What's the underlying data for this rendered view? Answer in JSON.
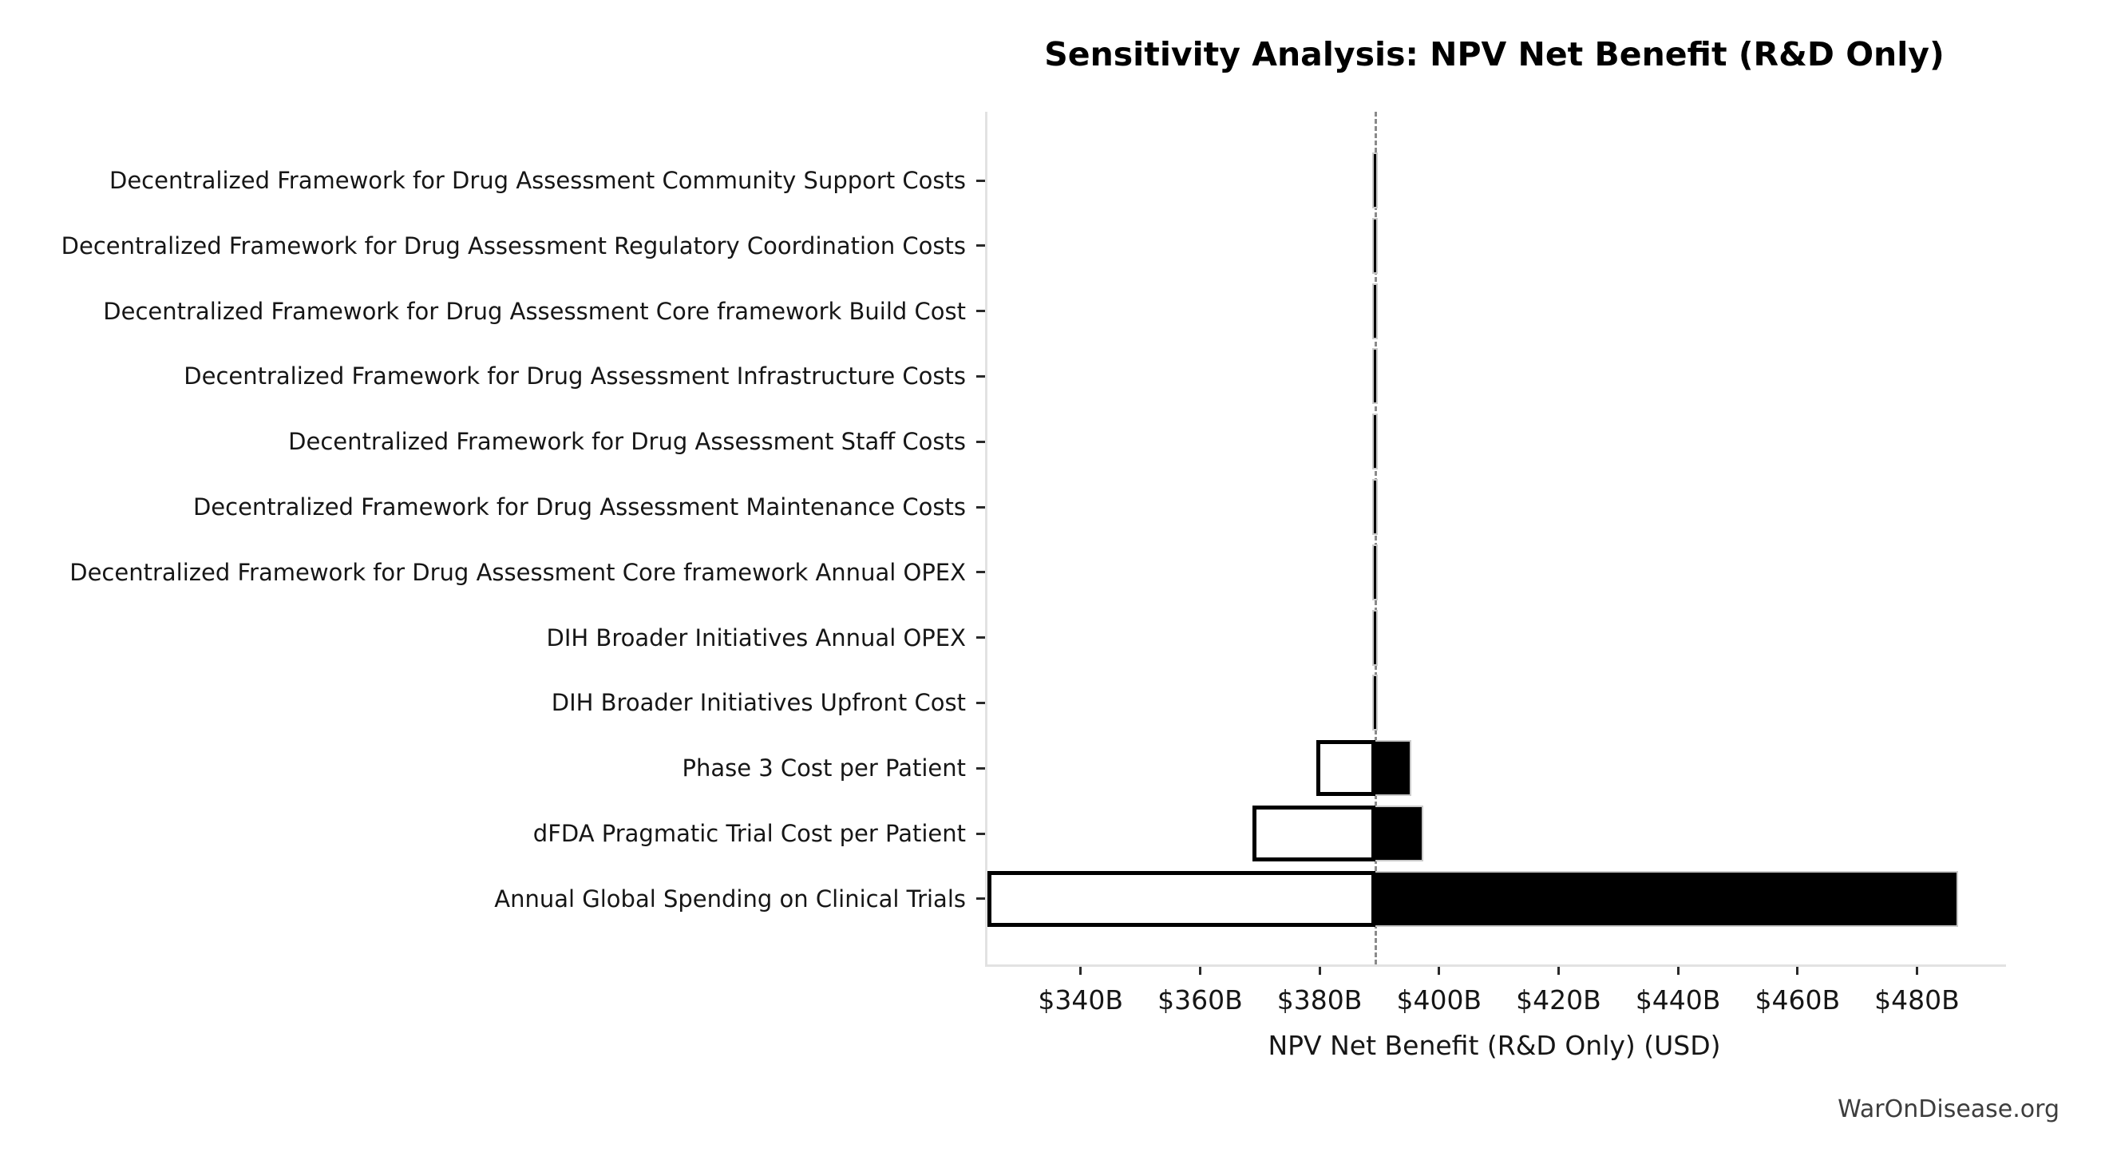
{
  "title": "Sensitivity Analysis: NPV Net Benefit (R&D Only)",
  "watermark": "WarOnDisease.org",
  "colors": {
    "bar_high_fill": "#000000",
    "bar_low_fill": "#ffffff",
    "bar_low_edge": "#000000",
    "bar_range_edge": "#c9c9c9",
    "baseline_dash": "#8a8a8a",
    "spine": "#e2e2e2",
    "text": "#161616",
    "watermark_text": "#3d3d3d",
    "background": "#ffffff"
  },
  "chart_data": {
    "type": "bar",
    "orientation": "horizontal",
    "subtype": "tornado-sensitivity",
    "title": "Sensitivity Analysis: NPV Net Benefit (R&D Only)",
    "xlabel": "NPV Net Benefit (R&D Only) (USD)",
    "ylabel": "",
    "units": "USD billions",
    "grid": false,
    "legend": "none",
    "baseline": 389.0,
    "xlim": [
      324.0,
      494.5
    ],
    "x_ticks": [
      {
        "value": 340,
        "label": "$340B"
      },
      {
        "value": 360,
        "label": "$360B"
      },
      {
        "value": 380,
        "label": "$380B"
      },
      {
        "value": 400,
        "label": "$400B"
      },
      {
        "value": 420,
        "label": "$420B"
      },
      {
        "value": 440,
        "label": "$440B"
      },
      {
        "value": 460,
        "label": "$460B"
      },
      {
        "value": 480,
        "label": "$480B"
      }
    ],
    "categories": [
      "Decentralized Framework for Drug Assessment Community Support Costs",
      "Decentralized Framework for Drug Assessment Regulatory Coordination Costs",
      "Decentralized Framework for Drug Assessment Core framework Build Cost",
      "Decentralized Framework for Drug Assessment Infrastructure Costs",
      "Decentralized Framework for Drug Assessment Staff Costs",
      "Decentralized Framework for Drug Assessment Maintenance Costs",
      "Decentralized Framework for Drug Assessment Core framework Annual OPEX",
      "DIH Broader Initiatives Annual OPEX",
      "DIH Broader Initiatives Upfront Cost",
      "Phase 3 Cost per Patient",
      "dFDA Pragmatic Trial Cost per Patient",
      "Annual Global Spending on Clinical Trials"
    ],
    "bars": [
      {
        "label": "Decentralized Framework for Drug Assessment Community Support Costs",
        "low": 388.4,
        "high": 389.4
      },
      {
        "label": "Decentralized Framework for Drug Assessment Regulatory Coordination Costs",
        "low": 388.4,
        "high": 389.4
      },
      {
        "label": "Decentralized Framework for Drug Assessment Core framework Build Cost",
        "low": 388.4,
        "high": 389.4
      },
      {
        "label": "Decentralized Framework for Drug Assessment Infrastructure Costs",
        "low": 388.4,
        "high": 389.4
      },
      {
        "label": "Decentralized Framework for Drug Assessment Staff Costs",
        "low": 388.4,
        "high": 389.4
      },
      {
        "label": "Decentralized Framework for Drug Assessment Maintenance Costs",
        "low": 388.4,
        "high": 389.4
      },
      {
        "label": "Decentralized Framework for Drug Assessment Core framework Annual OPEX",
        "low": 388.4,
        "high": 389.4
      },
      {
        "label": "DIH Broader Initiatives Annual OPEX",
        "low": 388.4,
        "high": 389.4
      },
      {
        "label": "DIH Broader Initiatives Upfront Cost",
        "low": 388.4,
        "high": 389.4
      },
      {
        "label": "Phase 3 Cost per Patient",
        "low": 379.0,
        "high": 395.0
      },
      {
        "label": "dFDA Pragmatic Trial Cost per Patient",
        "low": 368.4,
        "high": 397.0
      },
      {
        "label": "Annual Global Spending on Clinical Trials",
        "low": 324.0,
        "high": 486.5
      }
    ]
  }
}
